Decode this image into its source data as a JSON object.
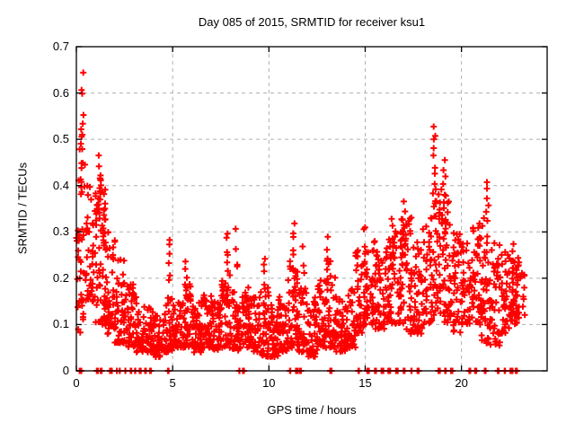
{
  "window": {
    "background": "#ffffff"
  },
  "chart_data": {
    "type": "scatter",
    "title": "Day 085 of 2015, SRMTID for receiver ksu1",
    "xlabel": "GPS time / hours",
    "ylabel": "SRMTID / TECUs",
    "xlim": [
      0,
      24.45
    ],
    "ylim": [
      0,
      0.7
    ],
    "xticks": [
      0,
      5,
      10,
      15,
      20
    ],
    "xtick_labels": [
      "0",
      "5",
      "10",
      "15",
      "20"
    ],
    "yticks": [
      0,
      0.1,
      0.2,
      0.3,
      0.4,
      0.5,
      0.6,
      0.7
    ],
    "ytick_labels": [
      "0",
      "0.1",
      "0.2",
      "0.3",
      "0.4",
      "0.5",
      "0.6",
      "0.7"
    ],
    "grid": true,
    "legend": "none",
    "grid_color": "#b0b0b0",
    "border_color": "#000000",
    "marker": {
      "shape": "plus",
      "color": "#ff0000",
      "size": 7,
      "stroke_width": 2
    },
    "seed": 20150085,
    "series_name": "SRMTID",
    "bands": [
      [
        0.05,
        0.5,
        0.08,
        0.32,
        30
      ],
      [
        0.1,
        0.45,
        0.38,
        0.48,
        12
      ],
      [
        0.5,
        1.0,
        0.15,
        0.4,
        40
      ],
      [
        1.0,
        1.5,
        0.1,
        0.42,
        55
      ],
      [
        1.5,
        2.0,
        0.08,
        0.3,
        50
      ],
      [
        2.0,
        2.5,
        0.06,
        0.24,
        48
      ],
      [
        2.5,
        3.0,
        0.05,
        0.19,
        42
      ],
      [
        3.0,
        3.5,
        0.04,
        0.16,
        40
      ],
      [
        3.5,
        4.0,
        0.04,
        0.14,
        36
      ],
      [
        4.0,
        4.5,
        0.03,
        0.12,
        36
      ],
      [
        4.5,
        5.0,
        0.04,
        0.16,
        40
      ],
      [
        5.0,
        5.5,
        0.05,
        0.15,
        42
      ],
      [
        5.5,
        6.0,
        0.05,
        0.19,
        46
      ],
      [
        6.0,
        6.5,
        0.04,
        0.15,
        46
      ],
      [
        6.5,
        7.0,
        0.05,
        0.17,
        46
      ],
      [
        7.0,
        7.5,
        0.04,
        0.15,
        44
      ],
      [
        7.5,
        8.0,
        0.05,
        0.21,
        46
      ],
      [
        8.0,
        8.5,
        0.04,
        0.17,
        44
      ],
      [
        8.5,
        9.0,
        0.05,
        0.18,
        44
      ],
      [
        9.0,
        9.5,
        0.04,
        0.16,
        44
      ],
      [
        9.5,
        10.0,
        0.03,
        0.18,
        44
      ],
      [
        10.0,
        10.5,
        0.03,
        0.15,
        44
      ],
      [
        10.5,
        11.0,
        0.04,
        0.16,
        44
      ],
      [
        11.0,
        11.5,
        0.05,
        0.24,
        46
      ],
      [
        11.5,
        12.0,
        0.04,
        0.18,
        42
      ],
      [
        12.0,
        12.5,
        0.03,
        0.16,
        44
      ],
      [
        12.5,
        13.0,
        0.05,
        0.2,
        44
      ],
      [
        13.0,
        13.5,
        0.05,
        0.24,
        44
      ],
      [
        13.5,
        14.0,
        0.04,
        0.16,
        40
      ],
      [
        14.0,
        14.5,
        0.05,
        0.18,
        40
      ],
      [
        14.5,
        15.0,
        0.08,
        0.26,
        44
      ],
      [
        15.0,
        15.5,
        0.1,
        0.28,
        44
      ],
      [
        15.5,
        16.0,
        0.09,
        0.26,
        44
      ],
      [
        16.0,
        16.5,
        0.1,
        0.29,
        44
      ],
      [
        16.5,
        17.0,
        0.1,
        0.33,
        44
      ],
      [
        17.0,
        17.5,
        0.08,
        0.34,
        44
      ],
      [
        17.5,
        18.0,
        0.08,
        0.28,
        40
      ],
      [
        18.0,
        18.5,
        0.1,
        0.35,
        40
      ],
      [
        18.5,
        19.0,
        0.12,
        0.4,
        44
      ],
      [
        19.0,
        19.5,
        0.1,
        0.38,
        44
      ],
      [
        19.5,
        20.0,
        0.08,
        0.3,
        40
      ],
      [
        20.0,
        20.5,
        0.1,
        0.28,
        40
      ],
      [
        20.5,
        21.0,
        0.1,
        0.31,
        40
      ],
      [
        21.0,
        21.5,
        0.06,
        0.33,
        42
      ],
      [
        21.5,
        22.0,
        0.05,
        0.28,
        40
      ],
      [
        22.0,
        22.5,
        0.08,
        0.26,
        40
      ],
      [
        22.5,
        23.0,
        0.1,
        0.25,
        46
      ],
      [
        23.0,
        23.3,
        0.12,
        0.22,
        10
      ]
    ],
    "spikes": [
      [
        0.3,
        0.44,
        0.66,
        8
      ],
      [
        0.28,
        0.5,
        0.53,
        2
      ],
      [
        0.05,
        0.24,
        0.31,
        3
      ],
      [
        1.22,
        0.3,
        0.47,
        10
      ],
      [
        1.45,
        0.25,
        0.4,
        6
      ],
      [
        4.82,
        0.18,
        0.3,
        6
      ],
      [
        5.7,
        0.16,
        0.24,
        5
      ],
      [
        7.8,
        0.18,
        0.31,
        7
      ],
      [
        8.3,
        0.2,
        0.31,
        4
      ],
      [
        9.8,
        0.16,
        0.26,
        5
      ],
      [
        11.3,
        0.18,
        0.33,
        8
      ],
      [
        11.8,
        0.16,
        0.28,
        4
      ],
      [
        13.0,
        0.18,
        0.3,
        6
      ],
      [
        15.0,
        0.2,
        0.33,
        6
      ],
      [
        16.4,
        0.22,
        0.35,
        5
      ],
      [
        17.0,
        0.24,
        0.38,
        6
      ],
      [
        18.6,
        0.32,
        0.54,
        12
      ],
      [
        19.1,
        0.28,
        0.47,
        10
      ],
      [
        20.9,
        0.22,
        0.33,
        4
      ],
      [
        21.35,
        0.25,
        0.42,
        9
      ],
      [
        22.7,
        0.12,
        0.28,
        10
      ]
    ],
    "zeros": [
      [
        0.2,
        4
      ],
      [
        1.1,
        3
      ],
      [
        1.3,
        2
      ],
      [
        1.8,
        4
      ],
      [
        2.1,
        2
      ],
      [
        2.3,
        2
      ],
      [
        2.55,
        2
      ],
      [
        2.8,
        2
      ],
      [
        3.05,
        2
      ],
      [
        3.3,
        3
      ],
      [
        3.6,
        2
      ],
      [
        3.85,
        2
      ],
      [
        4.8,
        4
      ],
      [
        8.45,
        2
      ],
      [
        8.65,
        2
      ],
      [
        11.15,
        2
      ],
      [
        11.45,
        2
      ],
      [
        11.65,
        2
      ],
      [
        13.2,
        4
      ],
      [
        14.65,
        3
      ],
      [
        15.15,
        4
      ],
      [
        15.5,
        3
      ],
      [
        15.9,
        4
      ],
      [
        16.25,
        4
      ],
      [
        16.65,
        3
      ],
      [
        17.0,
        2
      ],
      [
        17.45,
        3
      ],
      [
        17.75,
        2
      ],
      [
        18.85,
        4
      ],
      [
        19.15,
        3
      ],
      [
        19.5,
        4
      ],
      [
        20.45,
        3
      ],
      [
        20.75,
        3
      ],
      [
        21.25,
        4
      ],
      [
        21.9,
        3
      ],
      [
        22.3,
        4
      ],
      [
        22.6,
        3
      ],
      [
        22.85,
        2
      ]
    ]
  }
}
